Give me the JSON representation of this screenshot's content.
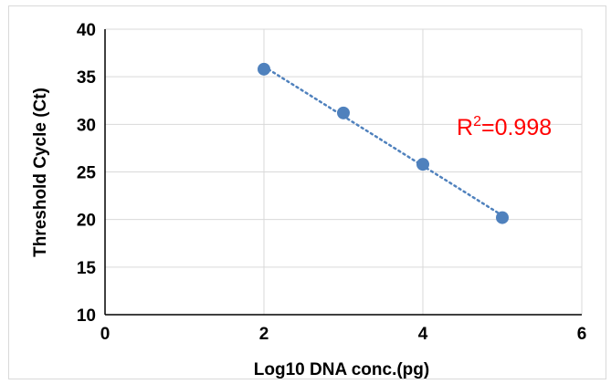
{
  "chart_data": {
    "type": "scatter",
    "title": "",
    "xlabel": "Log10 DNA conc.(pg)",
    "ylabel": "Threshold  Cycle (Ct)",
    "xlim": [
      0,
      6
    ],
    "ylim": [
      10,
      40
    ],
    "x_ticks": [
      0,
      2,
      4,
      6
    ],
    "y_ticks": [
      10,
      15,
      20,
      25,
      30,
      35,
      40
    ],
    "grid": {
      "x": true,
      "y": true
    },
    "legend": "none",
    "series": [
      {
        "x": [
          2,
          3,
          4,
          5
        ],
        "y": [
          35.8,
          31.2,
          25.8,
          20.2
        ],
        "color": "#4f81bd",
        "marker": "circle"
      }
    ],
    "trendline": {
      "type": "linear",
      "style": "dotted",
      "color": "#4f81bd",
      "x_range": [
        2,
        5
      ]
    },
    "annotation": {
      "r2_base": "R",
      "r2_sup": "2",
      "r2_value": "=0.998",
      "color": "#ff0000"
    }
  }
}
